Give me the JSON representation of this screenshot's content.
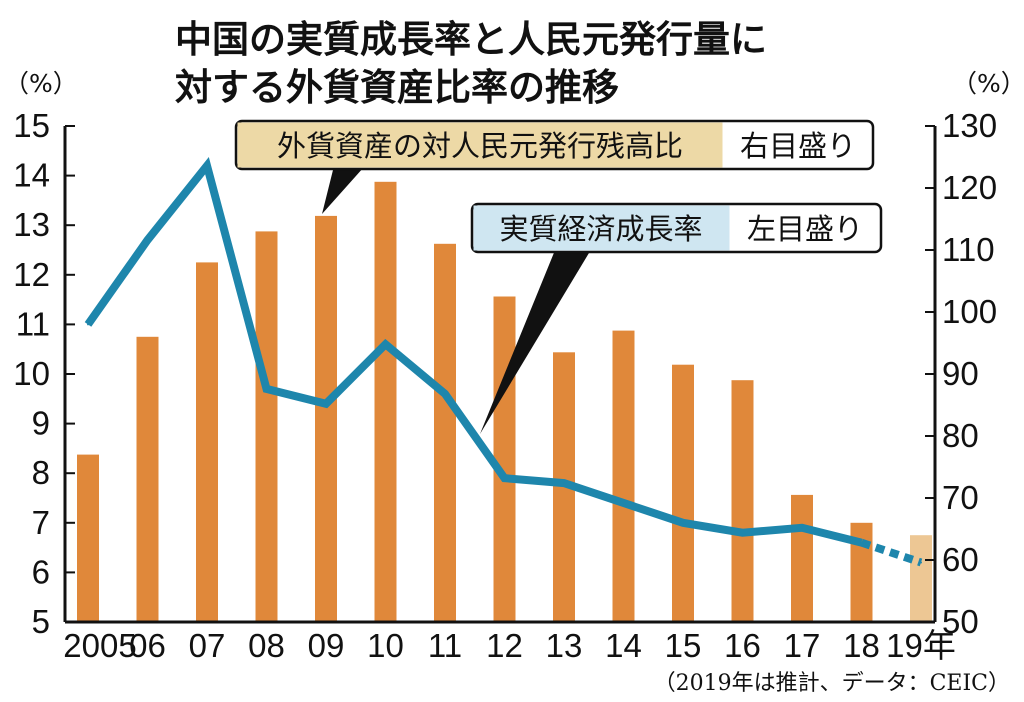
{
  "title_line1": "中国の実質成長率と人民元発行量に",
  "title_line2": "対する外貨資産比率の推移",
  "source": "（2019年は推計、データ：CEIC）",
  "colors": {
    "bar": "#E0883A",
    "bar_estimate": "#EDC794",
    "line": "#1E86AC",
    "label_gold": "#EDD9A6",
    "label_blue": "#CFE6F1"
  },
  "chart_data": {
    "type": "bar+line",
    "categories": [
      "2005",
      "06",
      "07",
      "08",
      "09",
      "10",
      "11",
      "12",
      "13",
      "14",
      "15",
      "16",
      "17",
      "18",
      "19年"
    ],
    "y_left": {
      "unit": "（%）",
      "range": [
        5,
        15
      ],
      "ticks": [
        5,
        6,
        7,
        8,
        9,
        10,
        11,
        12,
        13,
        14,
        15
      ]
    },
    "y_right": {
      "unit": "（%）",
      "range": [
        50,
        130
      ],
      "ticks": [
        50,
        60,
        70,
        80,
        90,
        100,
        110,
        120,
        130
      ]
    },
    "series": [
      {
        "name": "外貨資産の対人民元発行残高比",
        "axis": "右目盛り",
        "kind": "bar",
        "values": [
          77,
          96,
          108,
          113,
          115.5,
          121,
          111,
          102.5,
          93.5,
          97,
          91.5,
          89,
          70.5,
          66,
          64
        ]
      },
      {
        "name": "実質経済成長率",
        "axis": "左目盛り",
        "kind": "line",
        "values": [
          11.0,
          12.7,
          14.2,
          9.7,
          9.4,
          10.6,
          9.6,
          7.9,
          7.8,
          7.4,
          7.0,
          6.8,
          6.9,
          6.6,
          6.2
        ]
      }
    ],
    "estimate_from": "19年",
    "grid": false
  }
}
